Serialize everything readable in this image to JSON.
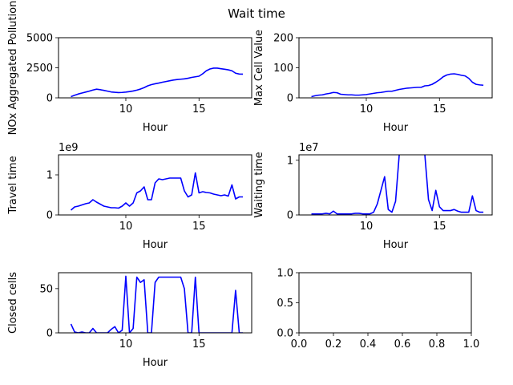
{
  "figure": {
    "suptitle": "Wait time"
  },
  "series_color": "#0000ff",
  "chart_data": [
    {
      "type": "line",
      "xlabel": "Hour",
      "ylabel": "NOx Aggregated Pollution",
      "xlim": [
        5.4,
        18.6
      ],
      "ylim": [
        0,
        5000
      ],
      "xticks": [
        10,
        15
      ],
      "yticks": [
        0,
        2500,
        5000
      ],
      "ytick_labels": [
        "0",
        "2500",
        "5000"
      ],
      "offset_text": "",
      "x": [
        6.25,
        6.5,
        6.75,
        7,
        7.25,
        7.5,
        7.75,
        8,
        8.25,
        8.5,
        8.75,
        9,
        9.25,
        9.5,
        9.75,
        10,
        10.25,
        10.5,
        10.75,
        11,
        11.25,
        11.5,
        11.75,
        12,
        12.25,
        12.5,
        12.75,
        13,
        13.25,
        13.5,
        13.75,
        14,
        14.25,
        14.5,
        14.75,
        15,
        15.25,
        15.5,
        15.75,
        16,
        16.25,
        16.5,
        16.75,
        17,
        17.25,
        17.5,
        17.75,
        18
      ],
      "y": [
        100,
        220,
        320,
        400,
        480,
        560,
        650,
        720,
        680,
        620,
        560,
        490,
        460,
        440,
        450,
        480,
        520,
        570,
        640,
        730,
        850,
        1000,
        1100,
        1170,
        1230,
        1300,
        1360,
        1420,
        1480,
        1520,
        1550,
        1580,
        1630,
        1700,
        1750,
        1800,
        2000,
        2250,
        2400,
        2470,
        2470,
        2420,
        2380,
        2330,
        2250,
        2050,
        1980,
        1970
      ]
    },
    {
      "type": "line",
      "xlabel": "Hour",
      "ylabel": "Max Cell Value",
      "xlim": [
        5.4,
        18.6
      ],
      "ylim": [
        0,
        200
      ],
      "xticks": [
        10,
        15
      ],
      "yticks": [
        0,
        100,
        200
      ],
      "ytick_labels": [
        "0",
        "100",
        "200"
      ],
      "offset_text": "",
      "x": [
        6.25,
        6.5,
        6.75,
        7,
        7.25,
        7.5,
        7.75,
        8,
        8.25,
        8.5,
        8.75,
        9,
        9.25,
        9.5,
        9.75,
        10,
        10.25,
        10.5,
        10.75,
        11,
        11.25,
        11.5,
        11.75,
        12,
        12.25,
        12.5,
        12.75,
        13,
        13.25,
        13.5,
        13.75,
        14,
        14.25,
        14.5,
        14.75,
        15,
        15.25,
        15.5,
        15.75,
        16,
        16.25,
        16.5,
        16.75,
        17,
        17.25,
        17.5,
        17.75,
        18
      ],
      "y": [
        4,
        7,
        9,
        10,
        13,
        15,
        18,
        17,
        12,
        11,
        10,
        10,
        9,
        9,
        10,
        11,
        13,
        15,
        17,
        18,
        20,
        22,
        22,
        25,
        28,
        30,
        32,
        33,
        34,
        35,
        35,
        40,
        41,
        45,
        52,
        60,
        70,
        76,
        79,
        80,
        78,
        75,
        73,
        65,
        52,
        45,
        43,
        42
      ]
    },
    {
      "type": "line",
      "xlabel": "Hour",
      "ylabel": "Travel time",
      "xlim": [
        5.4,
        18.6
      ],
      "ylim": [
        0,
        1.5
      ],
      "xticks": [
        10,
        15
      ],
      "yticks": [
        0,
        1
      ],
      "ytick_labels": [
        "0",
        "1"
      ],
      "offset_text": "1e9",
      "x": [
        6.25,
        6.5,
        6.75,
        7,
        7.25,
        7.5,
        7.75,
        8,
        8.25,
        8.5,
        8.75,
        9,
        9.25,
        9.5,
        9.75,
        10,
        10.25,
        10.5,
        10.75,
        11,
        11.25,
        11.5,
        11.75,
        12,
        12.25,
        12.5,
        12.75,
        13,
        13.25,
        13.5,
        13.75,
        14,
        14.25,
        14.5,
        14.75,
        15,
        15.25,
        15.5,
        15.75,
        16,
        16.25,
        16.5,
        16.75,
        17,
        17.25,
        17.5,
        17.75,
        18
      ],
      "y": [
        0.12,
        0.2,
        0.22,
        0.25,
        0.28,
        0.3,
        0.38,
        0.32,
        0.27,
        0.22,
        0.2,
        0.18,
        0.18,
        0.17,
        0.22,
        0.3,
        0.22,
        0.3,
        0.55,
        0.6,
        0.7,
        0.38,
        0.38,
        0.8,
        0.9,
        0.88,
        0.9,
        0.92,
        0.92,
        0.92,
        0.92,
        0.6,
        0.45,
        0.5,
        1.05,
        0.55,
        0.58,
        0.56,
        0.55,
        0.52,
        0.5,
        0.48,
        0.5,
        0.47,
        0.75,
        0.4,
        0.45,
        0.45
      ]
    },
    {
      "type": "line",
      "xlabel": "Hour",
      "ylabel": "Waiting time",
      "xlim": [
        5.4,
        18.6
      ],
      "ylim": [
        0,
        1.1
      ],
      "xticks": [
        10,
        15
      ],
      "yticks": [
        0,
        1
      ],
      "ytick_labels": [
        "0",
        "1"
      ],
      "offset_text": "1e7",
      "x": [
        6.25,
        6.5,
        6.75,
        7,
        7.25,
        7.5,
        7.75,
        8,
        8.25,
        8.5,
        8.75,
        9,
        9.25,
        9.5,
        9.75,
        10,
        10.25,
        10.5,
        10.75,
        11,
        11.25,
        11.5,
        11.75,
        12,
        12.25,
        12.5,
        12.75,
        13,
        13.25,
        13.5,
        13.75,
        14,
        14.25,
        14.5,
        14.75,
        15,
        15.25,
        15.5,
        15.75,
        16,
        16.25,
        16.5,
        16.75,
        17,
        17.25,
        17.5,
        17.75,
        18
      ],
      "y": [
        0.02,
        0.02,
        0.02,
        0.02,
        0.03,
        0.02,
        0.07,
        0.02,
        0.02,
        0.02,
        0.02,
        0.02,
        0.03,
        0.03,
        0.02,
        0.02,
        0.02,
        0.05,
        0.2,
        0.45,
        0.7,
        0.1,
        0.05,
        0.25,
        1.1,
        null,
        null,
        null,
        null,
        null,
        null,
        1.1,
        0.28,
        0.08,
        0.45,
        0.15,
        0.08,
        0.08,
        0.08,
        0.1,
        0.07,
        0.05,
        0.05,
        0.05,
        0.35,
        0.08,
        0.05,
        0.05
      ]
    },
    {
      "type": "line",
      "xlabel": "Hour",
      "ylabel": "Closed cells",
      "xlim": [
        5.4,
        18.6
      ],
      "ylim": [
        0,
        68
      ],
      "xticks": [
        10,
        15
      ],
      "yticks": [
        0,
        50
      ],
      "ytick_labels": [
        "0",
        "50"
      ],
      "offset_text": "",
      "x": [
        6.25,
        6.5,
        6.75,
        7,
        7.25,
        7.5,
        7.75,
        8,
        8.25,
        8.5,
        8.75,
        9,
        9.25,
        9.5,
        9.75,
        10,
        10.25,
        10.5,
        10.75,
        11,
        11.25,
        11.5,
        11.75,
        12,
        12.25,
        12.5,
        12.75,
        13,
        13.25,
        13.5,
        13.75,
        14,
        14.25,
        14.5,
        14.75,
        15,
        15.25,
        15.5,
        15.75,
        16,
        16.25,
        16.5,
        16.75,
        17,
        17.25,
        17.5,
        17.75,
        18
      ],
      "y": [
        10,
        1,
        0,
        1,
        0,
        0,
        5,
        0,
        0,
        0,
        0,
        4,
        7,
        0,
        3,
        64,
        0,
        5,
        63,
        57,
        60,
        0,
        0,
        57,
        63,
        63,
        63,
        63,
        63,
        63,
        63,
        50,
        0,
        0,
        63,
        0,
        0,
        0,
        0,
        0,
        0,
        0,
        0,
        0,
        0,
        48,
        0,
        0
      ]
    },
    {
      "type": "line",
      "xlabel": "",
      "ylabel": "",
      "xlim": [
        0,
        1
      ],
      "ylim": [
        0,
        1
      ],
      "xticks": [
        0,
        0.2,
        0.4,
        0.6,
        0.8,
        1.0
      ],
      "xtick_labels": [
        "0.0",
        "0.2",
        "0.4",
        "0.6",
        "0.8",
        "1.0"
      ],
      "yticks": [
        0,
        0.5,
        1.0
      ],
      "ytick_labels": [
        "0.0",
        "0.5",
        "1.0"
      ],
      "offset_text": "",
      "x": [],
      "y": []
    }
  ]
}
